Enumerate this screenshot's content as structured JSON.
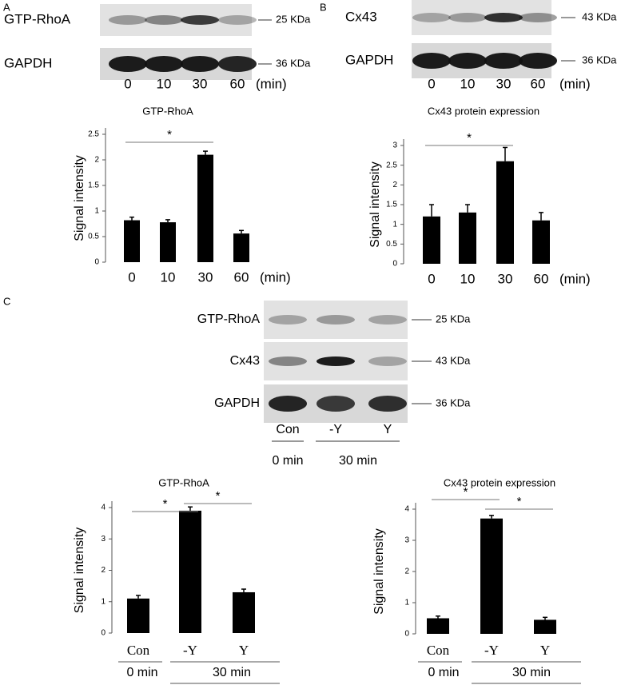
{
  "panels": [
    "A",
    "B",
    "C"
  ],
  "blots": [
    {
      "rows": [
        {
          "label": "GTP-RhoA",
          "size": "25 KDa"
        },
        {
          "label": "GAPDH",
          "size": "36 KDa"
        }
      ],
      "lanes": [
        "0",
        "10",
        "30",
        "60"
      ],
      "unit": "(min)"
    },
    {
      "rows": [
        {
          "label": "Cx43",
          "size": "43 KDa"
        },
        {
          "label": "GAPDH",
          "size": "36 KDa"
        }
      ],
      "lanes": [
        "0",
        "10",
        "30",
        "60"
      ],
      "unit": "(min)"
    },
    {
      "rows": [
        {
          "label": "GTP-RhoA",
          "size": "25 KDa"
        },
        {
          "label": "Cx43",
          "size": "43 KDa"
        },
        {
          "label": "GAPDH",
          "size": "36 KDa"
        }
      ],
      "lanes": [
        "Con",
        "-Y",
        "Y"
      ],
      "groups": [
        "0 min",
        "30 min"
      ]
    }
  ],
  "chart_data": [
    {
      "type": "bar",
      "title": "GTP-RhoA",
      "y_label": "Signal intensity",
      "x_label": "(min)",
      "categories": [
        "0",
        "10",
        "30",
        "60"
      ],
      "values": [
        0.82,
        0.78,
        2.1,
        0.56
      ],
      "errors": [
        0.06,
        0.05,
        0.07,
        0.06
      ],
      "color": "#000000",
      "ylim": [
        0,
        2.5
      ],
      "yticks": [
        0,
        0.5,
        1,
        1.5,
        2,
        2.5
      ],
      "significance": [
        {
          "label": "*",
          "between": [
            0,
            2
          ]
        }
      ]
    },
    {
      "type": "bar",
      "title": "Cx43 protein expression",
      "y_label": "Signal intensity",
      "x_label": "(min)",
      "categories": [
        "0",
        "10",
        "30",
        "60"
      ],
      "values": [
        1.2,
        1.3,
        2.6,
        1.1
      ],
      "errors": [
        0.3,
        0.2,
        0.35,
        0.2
      ],
      "color": "#000000",
      "ylim": [
        0,
        3
      ],
      "yticks": [
        0,
        0.5,
        1,
        1.5,
        2,
        2.5,
        3
      ],
      "significance": [
        {
          "label": "*",
          "between": [
            0,
            2
          ]
        }
      ]
    },
    {
      "type": "bar",
      "title": "GTP-RhoA",
      "y_label": "Signal intensity",
      "categories": [
        "Con",
        "-Y",
        "Y"
      ],
      "groups": [
        "0 min",
        "30 min"
      ],
      "values": [
        1.1,
        3.9,
        1.3
      ],
      "errors": [
        0.1,
        0.12,
        0.1
      ],
      "color": "#000000",
      "ylim": [
        0,
        4
      ],
      "yticks": [
        0,
        1,
        2,
        3,
        4
      ],
      "significance": [
        {
          "label": "*",
          "between": [
            0,
            1
          ]
        },
        {
          "label": "*",
          "between": [
            1,
            2
          ]
        }
      ]
    },
    {
      "type": "bar",
      "title": "Cx43 protein expression",
      "y_label": "Signal intensity",
      "categories": [
        "Con",
        "-Y",
        "Y"
      ],
      "groups": [
        "0 min",
        "30 min"
      ],
      "values": [
        0.5,
        3.7,
        0.45
      ],
      "errors": [
        0.07,
        0.1,
        0.08
      ],
      "color": "#000000",
      "ylim": [
        0,
        4
      ],
      "yticks": [
        0,
        1,
        2,
        3,
        4
      ],
      "significance": [
        {
          "label": "*",
          "between": [
            0,
            1
          ]
        },
        {
          "label": "*",
          "between": [
            1,
            2
          ]
        }
      ]
    }
  ]
}
